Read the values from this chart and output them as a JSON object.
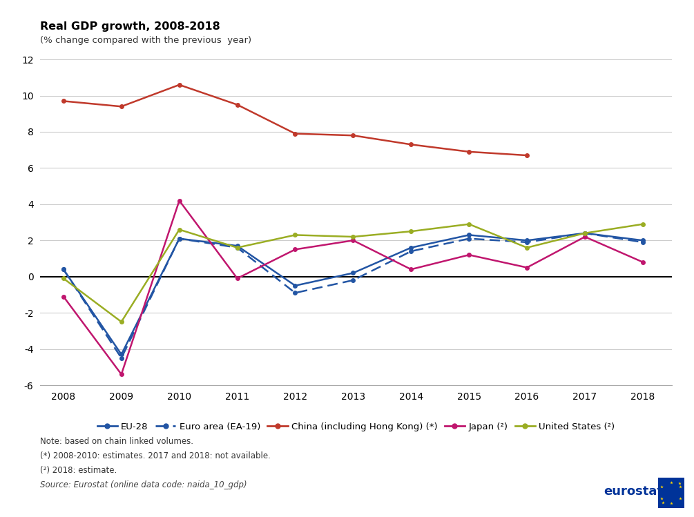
{
  "title": "Real GDP growth, 2008-2018",
  "subtitle": "(% change compared with the previous  year)",
  "years": [
    2008,
    2009,
    2010,
    2011,
    2012,
    2013,
    2014,
    2015,
    2016,
    2017,
    2018
  ],
  "eu28": [
    0.4,
    -4.3,
    2.1,
    1.7,
    -0.5,
    0.2,
    1.6,
    2.3,
    2.0,
    2.4,
    2.0
  ],
  "ea19": [
    0.4,
    -4.5,
    2.1,
    1.6,
    -0.9,
    -0.2,
    1.4,
    2.1,
    1.9,
    2.4,
    1.9
  ],
  "china_years": [
    2008,
    2009,
    2010,
    2011,
    2012,
    2013,
    2014,
    2015,
    2016
  ],
  "china": [
    9.7,
    9.4,
    10.6,
    9.5,
    7.9,
    7.8,
    7.3,
    6.9,
    6.7
  ],
  "japan": [
    -1.1,
    -5.4,
    4.2,
    -0.1,
    1.5,
    2.0,
    0.4,
    1.2,
    0.5,
    2.2,
    0.8
  ],
  "us": [
    -0.1,
    -2.5,
    2.6,
    1.6,
    2.3,
    2.2,
    2.5,
    2.9,
    1.6,
    2.4,
    2.9
  ],
  "eu28_color": "#2255a4",
  "ea19_color": "#2255a4",
  "china_color": "#c0392b",
  "japan_color": "#c0166e",
  "us_color": "#9aad23",
  "ylim": [
    -6,
    12
  ],
  "yticks": [
    -6,
    -4,
    -2,
    0,
    2,
    4,
    6,
    8,
    10,
    12
  ],
  "grid_color": "#cccccc",
  "note_line1": "Note: based on chain linked volumes.",
  "note_line2": "(*) 2008-2010: estimates. 2017 and 2018: not available.",
  "note_line3": "(²) 2018: estimate.",
  "note_line4": "Source: Eurostat (online data code: naida_10_gdp)",
  "legend_labels": [
    "EU-28",
    "Euro area (EA-19)",
    "China (including Hong Kong) (*)",
    "Japan (²)",
    "United States (²)"
  ]
}
